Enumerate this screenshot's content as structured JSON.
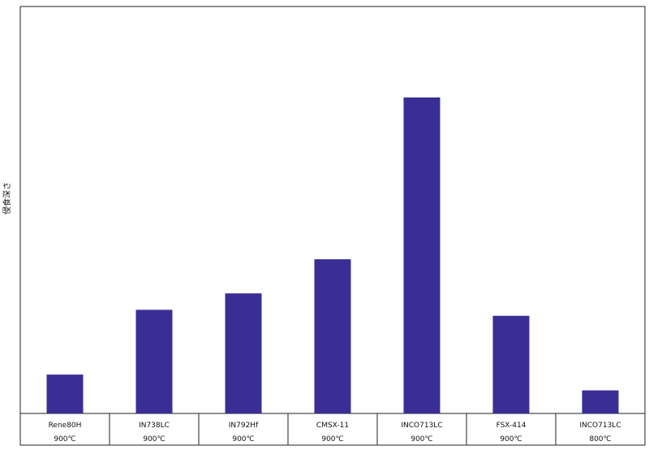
{
  "chart_data": {
    "type": "bar",
    "title": "",
    "xlabel": "",
    "ylabel": "侵食深さ",
    "categories": [
      {
        "name": "Rene80H",
        "temp": "900℃"
      },
      {
        "name": "IN738LC",
        "temp": "900℃"
      },
      {
        "name": "IN792Hf",
        "temp": "900℃"
      },
      {
        "name": "CMSX-11",
        "temp": "900℃"
      },
      {
        "name": "INCO713LC",
        "temp": "900℃"
      },
      {
        "name": "FSX-414",
        "temp": "900℃"
      },
      {
        "name": "INCO713LC",
        "temp": "800℃"
      }
    ],
    "values": [
      12.3,
      32.8,
      38.0,
      48.8,
      100,
      30.9,
      7.3
    ],
    "ylim": [
      0,
      100
    ],
    "grid": false,
    "bar_color": "#3a2e96"
  }
}
